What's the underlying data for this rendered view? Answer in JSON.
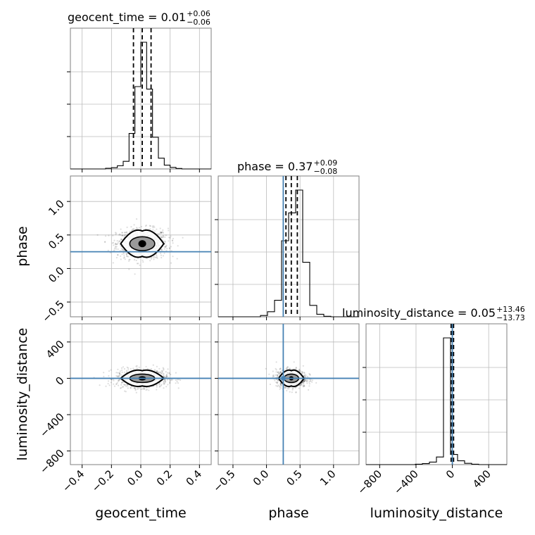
{
  "colors": {
    "truth": "#4682b4",
    "histogram": "#000000",
    "grid": "#bcbcbc",
    "frame": "#7f7f7f"
  },
  "chart_data": {
    "type": "corner",
    "parameters": [
      {
        "name": "geocent_time",
        "axis_label": "geocent_time",
        "title_main": "geocent_time = 0.01",
        "title_plus": "+0.06",
        "title_minus": "−0.06",
        "median": 0.01,
        "quantiles": [
          -0.05,
          0.01,
          0.07
        ],
        "truth": null,
        "range": [
          -0.48,
          0.48
        ],
        "ticks": [
          -0.4,
          -0.2,
          0.0,
          0.2,
          0.4
        ],
        "tick_labels": [
          "−0.4",
          "−0.2",
          "0.0",
          "0.2",
          "0.4"
        ],
        "hist_edges": [
          -0.48,
          -0.44,
          -0.4,
          -0.36,
          -0.32,
          -0.28,
          -0.24,
          -0.2,
          -0.16,
          -0.12,
          -0.08,
          -0.04,
          0.0,
          0.04,
          0.08,
          0.12,
          0.16,
          0.2,
          0.24,
          0.28,
          0.32,
          0.36,
          0.4,
          0.44,
          0.48
        ],
        "hist_counts": [
          0,
          0,
          0,
          0,
          0,
          0,
          0.005,
          0.01,
          0.025,
          0.06,
          0.28,
          0.65,
          1.0,
          0.63,
          0.25,
          0.085,
          0.03,
          0.012,
          0.004,
          0,
          0,
          0,
          0,
          0
        ]
      },
      {
        "name": "phase",
        "axis_label": "phase",
        "title_main": "phase = 0.37",
        "title_plus": "+0.09",
        "title_minus": "−0.08",
        "median": 0.37,
        "quantiles": [
          0.29,
          0.37,
          0.46
        ],
        "truth": 0.25,
        "range": [
          -0.72,
          1.38
        ],
        "ticks": [
          -0.5,
          0.0,
          0.5,
          1.0
        ],
        "tick_labels": [
          "−0.5",
          "0.0",
          "0.5",
          "1.0"
        ],
        "hist_edges": [
          -0.72,
          -0.615,
          -0.51,
          -0.405,
          -0.3,
          -0.195,
          -0.09,
          0.015,
          0.12,
          0.225,
          0.33,
          0.435,
          0.54,
          0.645,
          0.75,
          0.855,
          0.96,
          1.065,
          1.17,
          1.275,
          1.38
        ],
        "hist_counts": [
          0,
          0,
          0,
          0,
          0,
          0,
          0.01,
          0.04,
          0.13,
          0.6,
          0.82,
          1.0,
          0.43,
          0.09,
          0.02,
          0.004,
          0,
          0,
          0,
          0
        ]
      },
      {
        "name": "luminosity_distance",
        "axis_label": "luminosity_distance",
        "title_main": "luminosity_distance = 0.05",
        "title_plus": "+13.46",
        "title_minus": "−13.73",
        "median": 0.05,
        "quantiles": [
          -13.7,
          0.05,
          13.5
        ],
        "truth": 0,
        "range": [
          -950,
          600
        ],
        "ticks": [
          -800,
          -400,
          0,
          400
        ],
        "tick_labels": [
          "−800",
          "−400",
          "0",
          "400"
        ],
        "hist_edges": [
          -950,
          -872.5,
          -795,
          -717.5,
          -640,
          -562.5,
          -485,
          -407.5,
          -330,
          -252.5,
          -175,
          -97.5,
          -20,
          57.5,
          135,
          212.5,
          290,
          367.5,
          445,
          522.5,
          600
        ],
        "hist_counts": [
          0,
          0,
          0,
          0,
          0,
          0,
          0,
          0.003,
          0.008,
          0.02,
          0.06,
          1.0,
          0.08,
          0.03,
          0.01,
          0.003,
          0,
          0,
          0,
          0
        ]
      }
    ],
    "pairs": [
      {
        "x": "geocent_time",
        "y": "phase",
        "center": [
          0.01,
          0.37
        ],
        "spread": [
          0.07,
          0.09
        ],
        "truth_x": null,
        "truth_y": 0.25
      },
      {
        "x": "geocent_time",
        "y": "luminosity_distance",
        "center": [
          0.01,
          0.0
        ],
        "spread": [
          0.07,
          40
        ],
        "truth_x": null,
        "truth_y": 0
      },
      {
        "x": "phase",
        "y": "luminosity_distance",
        "center": [
          0.37,
          0.0
        ],
        "spread": [
          0.09,
          40
        ],
        "truth_x": 0.25,
        "truth_y": 0
      }
    ],
    "grid": true
  }
}
